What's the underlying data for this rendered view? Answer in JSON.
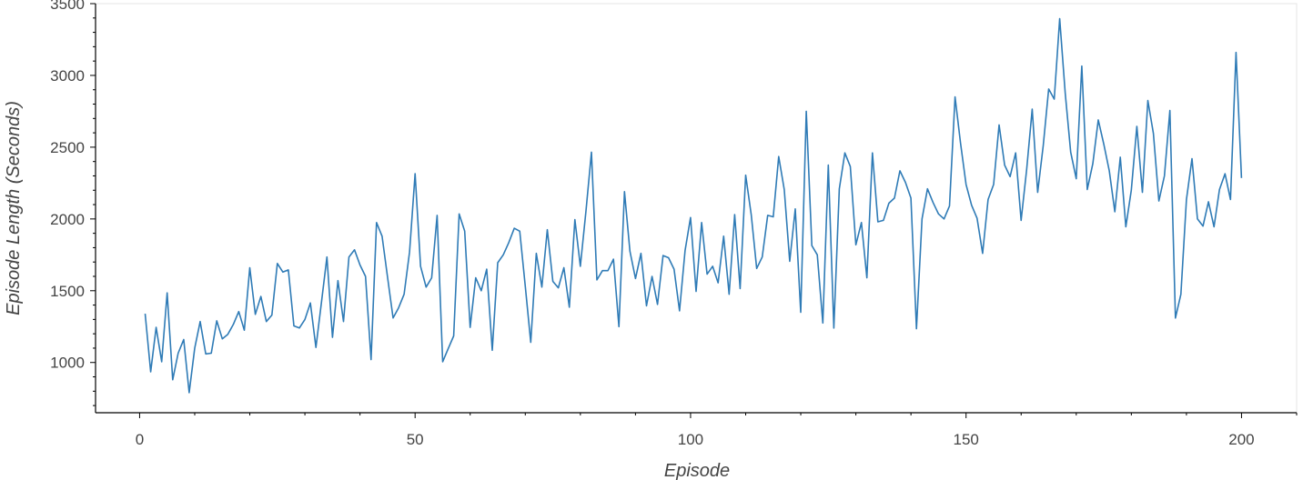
{
  "chart_data": {
    "type": "line",
    "title": "",
    "xlabel": "Episode",
    "ylabel": "Episode Length (Seconds)",
    "xlim": [
      -8,
      210
    ],
    "ylim": [
      650,
      3500
    ],
    "x_ticks": [
      0,
      50,
      100,
      150,
      200
    ],
    "y_ticks": [
      1000,
      1500,
      2000,
      2500,
      3000,
      3500
    ],
    "x_tick_labels": [
      "0",
      "50",
      "100",
      "150",
      "200"
    ],
    "y_tick_labels": [
      "1000",
      "1500",
      "2000",
      "2500",
      "3000",
      "3500"
    ],
    "x_minor_step": 10,
    "y_minor_step": 100,
    "grid": false,
    "legend": "none",
    "colors": {
      "line": "#2f7bb6",
      "axis": "#000000",
      "frame": "#e5e5e5",
      "text": "#444444"
    },
    "series": [
      {
        "x": [
          1,
          2,
          3,
          4,
          5,
          6,
          7,
          8,
          9,
          10,
          11,
          12,
          13,
          14,
          15,
          16,
          17,
          18,
          19,
          20,
          21,
          22,
          23,
          24,
          25,
          26,
          27,
          28,
          29,
          30,
          31,
          32,
          33,
          34,
          35,
          36,
          37,
          38,
          39,
          40,
          41,
          42,
          43,
          44,
          45,
          46,
          47,
          48,
          49,
          50,
          51,
          52,
          53,
          54,
          55,
          56,
          57,
          58,
          59,
          60,
          61,
          62,
          63,
          64,
          65,
          66,
          67,
          68,
          69,
          70,
          71,
          72,
          73,
          74,
          75,
          76,
          77,
          78,
          79,
          80,
          81,
          82,
          83,
          84,
          85,
          86,
          87,
          88,
          89,
          90,
          91,
          92,
          93,
          94,
          95,
          96,
          97,
          98,
          99,
          100,
          101,
          102,
          103,
          104,
          105,
          106,
          107,
          108,
          109,
          110,
          111,
          112,
          113,
          114,
          115,
          116,
          117,
          118,
          119,
          120,
          121,
          122,
          123,
          124,
          125,
          126,
          127,
          128,
          129,
          130,
          131,
          132,
          133,
          134,
          135,
          136,
          137,
          138,
          139,
          140,
          141,
          142,
          143,
          144,
          145,
          146,
          147,
          148,
          149,
          150,
          151,
          152,
          153,
          154,
          155,
          156,
          157,
          158,
          159,
          160,
          161,
          162,
          163,
          164,
          165,
          166,
          167,
          168,
          169,
          170,
          171,
          172,
          173,
          174,
          175,
          176,
          177,
          178,
          179,
          180,
          181,
          182,
          183,
          184,
          185,
          186,
          187,
          188,
          189,
          190,
          191,
          192,
          193,
          194,
          195,
          196,
          197,
          198,
          199,
          200
        ],
        "values": [
          1340,
          935,
          1245,
          1005,
          1485,
          880,
          1065,
          1160,
          790,
          1100,
          1285,
          1060,
          1065,
          1290,
          1165,
          1195,
          1265,
          1355,
          1225,
          1660,
          1335,
          1460,
          1285,
          1330,
          1690,
          1630,
          1645,
          1255,
          1240,
          1300,
          1415,
          1105,
          1420,
          1735,
          1175,
          1570,
          1285,
          1735,
          1785,
          1680,
          1600,
          1020,
          1975,
          1880,
          1595,
          1310,
          1380,
          1475,
          1770,
          2315,
          1670,
          1525,
          1590,
          2025,
          1005,
          1095,
          1185,
          2035,
          1915,
          1245,
          1590,
          1500,
          1650,
          1085,
          1695,
          1750,
          1835,
          1935,
          1915,
          1530,
          1140,
          1760,
          1525,
          1925,
          1565,
          1520,
          1660,
          1385,
          1995,
          1670,
          2050,
          2465,
          1575,
          1640,
          1640,
          1720,
          1250,
          2190,
          1775,
          1585,
          1760,
          1395,
          1600,
          1405,
          1745,
          1730,
          1650,
          1360,
          1780,
          2010,
          1495,
          1975,
          1615,
          1670,
          1555,
          1880,
          1475,
          2030,
          1515,
          2305,
          2030,
          1655,
          1735,
          2025,
          2015,
          2435,
          2205,
          1705,
          2070,
          1350,
          2750,
          1815,
          1750,
          1275,
          2375,
          1240,
          2210,
          2460,
          2365,
          1820,
          1975,
          1590,
          2460,
          1980,
          1990,
          2110,
          2145,
          2335,
          2255,
          2145,
          1235,
          2000,
          2210,
          2115,
          2035,
          2000,
          2090,
          2850,
          2530,
          2240,
          2095,
          2005,
          1760,
          2135,
          2240,
          2655,
          2375,
          2295,
          2460,
          1990,
          2345,
          2765,
          2185,
          2510,
          2905,
          2835,
          3395,
          2875,
          2465,
          2280,
          3065,
          2205,
          2385,
          2690,
          2520,
          2335,
          2050,
          2430,
          1945,
          2200,
          2645,
          2185,
          2825,
          2595,
          2125,
          2300,
          2755,
          1310,
          1475,
          2135,
          2420,
          2000,
          1950,
          2120,
          1945,
          2205,
          2315,
          2135,
          3160,
          2285
        ]
      }
    ]
  }
}
